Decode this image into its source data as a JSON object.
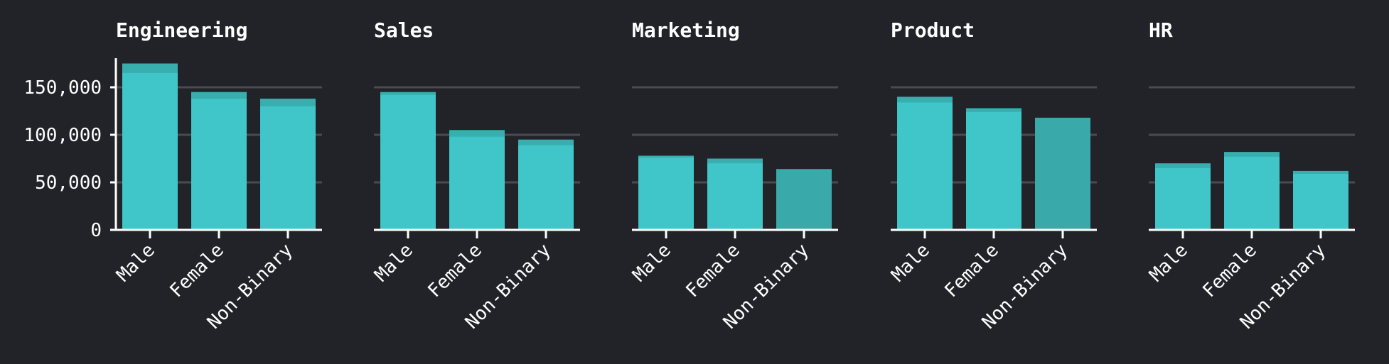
{
  "chart_data": {
    "type": "bar",
    "series_name": "",
    "yticks": [
      0,
      50000,
      100000,
      150000
    ],
    "ytick_labels": [
      "0",
      "50,000",
      "100,000",
      "150,000"
    ],
    "ylim": [
      0,
      180000
    ],
    "grid": true,
    "legend": "none",
    "colors": {
      "bar": "#40c6c8",
      "bar_muted": "#3aa9aa",
      "background": "#222328",
      "grid": "#4a4b50",
      "axis": "#ffffff"
    },
    "panels": [
      {
        "title": "Engineering",
        "categories": [
          "Male",
          "Female",
          "Non-Binary"
        ],
        "values": [
          175000,
          145000,
          138000
        ],
        "error_low": [
          165000,
          138000,
          130000
        ],
        "shade": [
          "bar",
          "bar",
          "bar"
        ]
      },
      {
        "title": "Sales",
        "categories": [
          "Male",
          "Female",
          "Non-Binary"
        ],
        "values": [
          145000,
          105000,
          95000
        ],
        "error_low": [
          142000,
          98000,
          89000
        ],
        "shade": [
          "bar",
          "bar",
          "bar"
        ]
      },
      {
        "title": "Marketing",
        "categories": [
          "Male",
          "Female",
          "Non-Binary"
        ],
        "values": [
          78000,
          75000,
          64000
        ],
        "error_low": [
          76000,
          70000,
          64000
        ],
        "shade": [
          "bar",
          "bar",
          "bar_muted"
        ]
      },
      {
        "title": "Product",
        "categories": [
          "Male",
          "Female",
          "Non-Binary"
        ],
        "values": [
          140000,
          128000,
          118000
        ],
        "error_low": [
          134000,
          124000,
          118000
        ],
        "shade": [
          "bar",
          "bar",
          "bar_muted"
        ]
      },
      {
        "title": "HR",
        "categories": [
          "Male",
          "Female",
          "Non-Binary"
        ],
        "values": [
          70000,
          82000,
          62000
        ],
        "error_low": [
          65000,
          77000,
          59000
        ],
        "shade": [
          "bar",
          "bar",
          "bar"
        ]
      }
    ]
  }
}
